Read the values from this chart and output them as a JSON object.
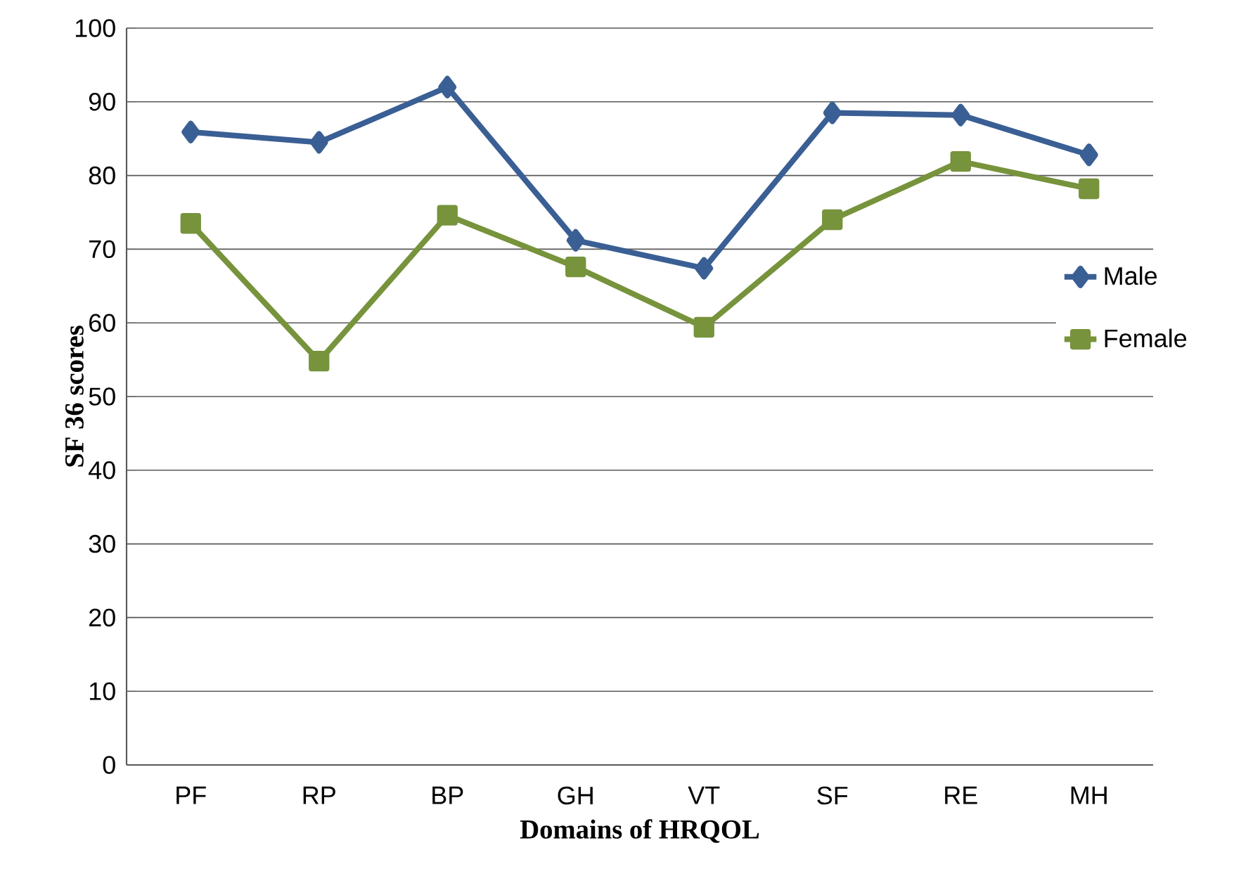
{
  "chart_data": {
    "type": "line",
    "xlabel": "Domains of HRQOL",
    "ylabel": "SF 36 scores",
    "categories": [
      "PF",
      "RP",
      "BP",
      "GH",
      "VT",
      "SF",
      "RE",
      "MH"
    ],
    "series": [
      {
        "name": "Male",
        "color": "#3a5f94",
        "marker": "diamond",
        "values": [
          85.9,
          84.5,
          92.0,
          71.2,
          67.4,
          88.5,
          88.2,
          82.8
        ]
      },
      {
        "name": "Female",
        "color": "#77933c",
        "marker": "square",
        "values": [
          73.5,
          54.8,
          74.6,
          67.6,
          59.4,
          74.0,
          81.9,
          78.2
        ]
      }
    ],
    "ylim": [
      0,
      100
    ],
    "yticks": [
      0,
      10,
      20,
      30,
      40,
      50,
      60,
      70,
      80,
      90,
      100
    ],
    "grid": "y",
    "legend": "right"
  }
}
